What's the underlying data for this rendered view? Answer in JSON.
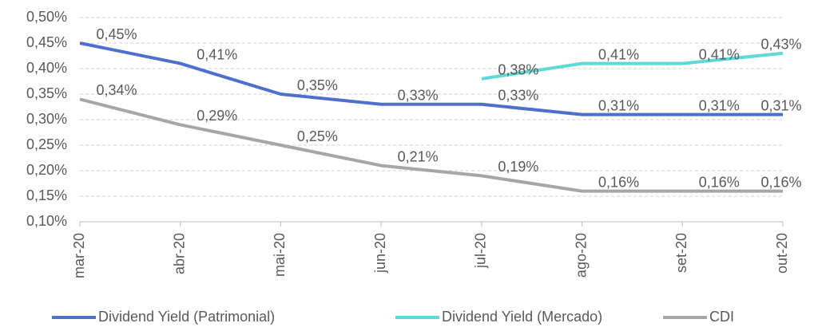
{
  "chart_data": {
    "type": "line",
    "categories": [
      "mar-20",
      "abr-20",
      "mai-20",
      "jun-20",
      "jul-20",
      "ago-20",
      "set-20",
      "out-20"
    ],
    "series": [
      {
        "name": "Dividend Yield (Patrimonial)",
        "color": "#4f6fcf",
        "values": [
          0.45,
          0.41,
          0.35,
          0.33,
          0.33,
          0.31,
          0.31,
          0.31
        ],
        "value_labels": [
          "0,45%",
          "0,41%",
          "0,35%",
          "0,33%",
          "0,33%",
          "0,31%",
          "0,31%",
          "0,31%"
        ]
      },
      {
        "name": "Dividend Yield (Mercado)",
        "color": "#5fd8d8",
        "values": [
          null,
          null,
          null,
          null,
          0.38,
          0.41,
          0.41,
          0.43
        ],
        "value_labels": [
          null,
          null,
          null,
          null,
          "0,38%",
          "0,41%",
          "0,41%",
          "0,43%"
        ]
      },
      {
        "name": "CDI",
        "color": "#a6a6a6",
        "values": [
          0.34,
          0.29,
          0.25,
          0.21,
          0.19,
          0.16,
          0.16,
          0.16
        ],
        "value_labels": [
          "0,34%",
          "0,29%",
          "0,25%",
          "0,21%",
          "0,19%",
          "0,16%",
          "0,16%",
          "0,16%"
        ]
      }
    ],
    "ylim": [
      0.1,
      0.5
    ],
    "yticks": [
      {
        "value": 0.1,
        "label": "0,10%"
      },
      {
        "value": 0.15,
        "label": "0,15%"
      },
      {
        "value": 0.2,
        "label": "0,20%"
      },
      {
        "value": 0.25,
        "label": "0,25%"
      },
      {
        "value": 0.3,
        "label": "0,30%"
      },
      {
        "value": 0.35,
        "label": "0,35%"
      },
      {
        "value": 0.4,
        "label": "0,40%"
      },
      {
        "value": 0.45,
        "label": "0,45%"
      },
      {
        "value": 0.5,
        "label": "0,50%"
      }
    ],
    "grid": true,
    "legend": "bottom"
  }
}
